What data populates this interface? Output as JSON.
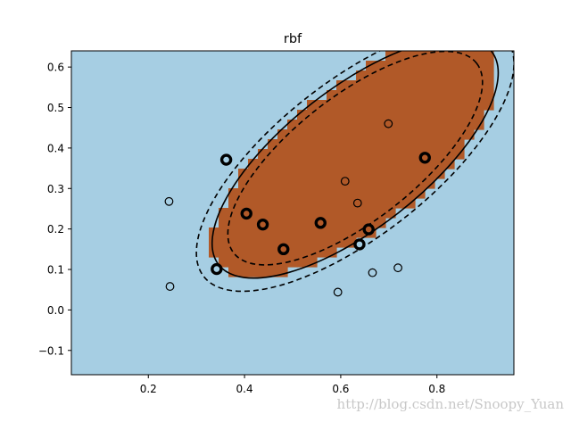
{
  "chart_data": {
    "type": "scatter",
    "title": "rbf",
    "xlim": [
      0.04,
      0.96
    ],
    "ylim": [
      -0.16,
      0.64
    ],
    "x_ticks": [
      0.2,
      0.4,
      0.6,
      0.8
    ],
    "y_ticks": [
      -0.1,
      0.0,
      0.1,
      0.2,
      0.3,
      0.4,
      0.5,
      0.6
    ],
    "x_tick_labels": [
      "0.2",
      "0.4",
      "0.6",
      "0.8"
    ],
    "y_tick_labels": [
      "−0.1",
      "0.0",
      "0.1",
      "0.2",
      "0.3",
      "0.4",
      "0.5",
      "0.6"
    ],
    "grid": false,
    "legend": "none",
    "decision_region": {
      "background_color": "#a6cee3",
      "positive_color": "#b15928",
      "boundary": {
        "center": [
          0.63,
          0.375
        ],
        "semi_axes": [
          0.36,
          0.145
        ],
        "angle_deg": 38
      }
    },
    "points": [
      {
        "x": 0.243,
        "y": 0.268,
        "support_vector": false
      },
      {
        "x": 0.245,
        "y": 0.058,
        "support_vector": false
      },
      {
        "x": 0.342,
        "y": 0.101,
        "support_vector": true
      },
      {
        "x": 0.362,
        "y": 0.371,
        "support_vector": true
      },
      {
        "x": 0.404,
        "y": 0.238,
        "support_vector": true
      },
      {
        "x": 0.438,
        "y": 0.211,
        "support_vector": true
      },
      {
        "x": 0.481,
        "y": 0.15,
        "support_vector": true
      },
      {
        "x": 0.558,
        "y": 0.215,
        "support_vector": true
      },
      {
        "x": 0.594,
        "y": 0.044,
        "support_vector": false
      },
      {
        "x": 0.609,
        "y": 0.318,
        "support_vector": false
      },
      {
        "x": 0.635,
        "y": 0.264,
        "support_vector": false
      },
      {
        "x": 0.639,
        "y": 0.162,
        "support_vector": true
      },
      {
        "x": 0.658,
        "y": 0.199,
        "support_vector": true
      },
      {
        "x": 0.666,
        "y": 0.092,
        "support_vector": false
      },
      {
        "x": 0.699,
        "y": 0.46,
        "support_vector": false
      },
      {
        "x": 0.719,
        "y": 0.104,
        "support_vector": false
      },
      {
        "x": 0.775,
        "y": 0.376,
        "support_vector": true
      }
    ]
  },
  "watermark": "http://blog.csdn.net/Snoopy_Yuan"
}
